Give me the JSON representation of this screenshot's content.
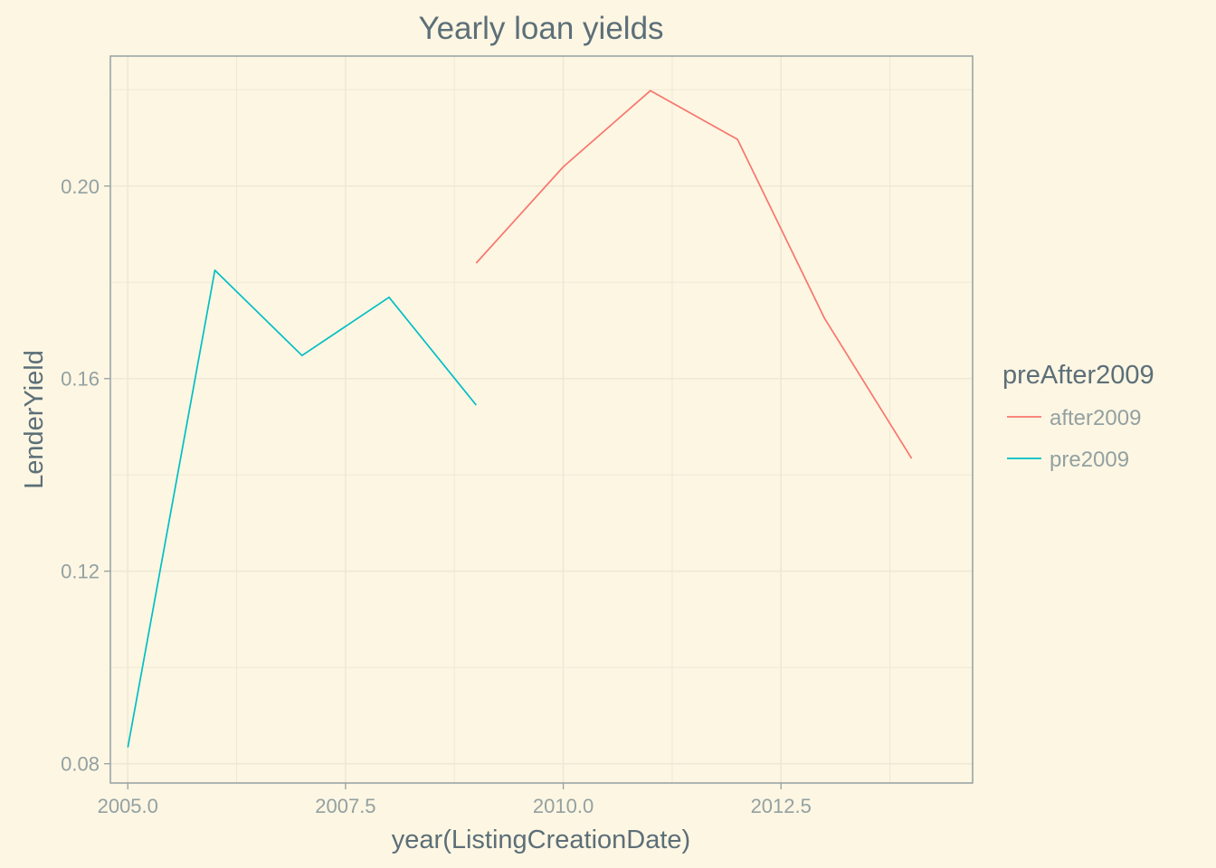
{
  "chart_data": {
    "type": "line",
    "title": "Yearly loan yields",
    "xlabel": "year(ListingCreationDate)",
    "ylabel": "LenderYield",
    "xlim": [
      4.8,
      14.7
    ],
    "ylim": [
      0.076,
      0.227
    ],
    "x_ticks": [
      5.0,
      7.5,
      10.0,
      12.5
    ],
    "x_tick_labels": [
      "2005.0",
      "2007.5",
      "2010.0",
      "2012.5"
    ],
    "y_ticks": [
      0.08,
      0.12,
      0.16,
      0.2
    ],
    "y_tick_labels": [
      "0.08",
      "0.12",
      "0.16",
      "0.20"
    ],
    "grid": true,
    "legend": {
      "title": "preAfter2009",
      "placement": "right",
      "entries": [
        "after2009",
        "pre2009"
      ]
    },
    "series": [
      {
        "name": "after2009",
        "color": "#f8766d",
        "x": [
          2009,
          2010,
          2011,
          2012,
          2013,
          2014
        ],
        "y": [
          0.184,
          0.204,
          0.2198,
          0.2097,
          0.1725,
          0.1434
        ]
      },
      {
        "name": "pre2009",
        "color": "#00bfc4",
        "x": [
          2005,
          2006,
          2007,
          2008,
          2009
        ],
        "y": [
          0.0834,
          0.1825,
          0.1648,
          0.1769,
          0.1545
        ]
      }
    ],
    "colors": {
      "background": "#fdf6e3",
      "grid": "#eee8d5",
      "panel_border": "#93a1a1",
      "text_dark": "#5c6f78",
      "text_light": "#93a1a1"
    }
  }
}
